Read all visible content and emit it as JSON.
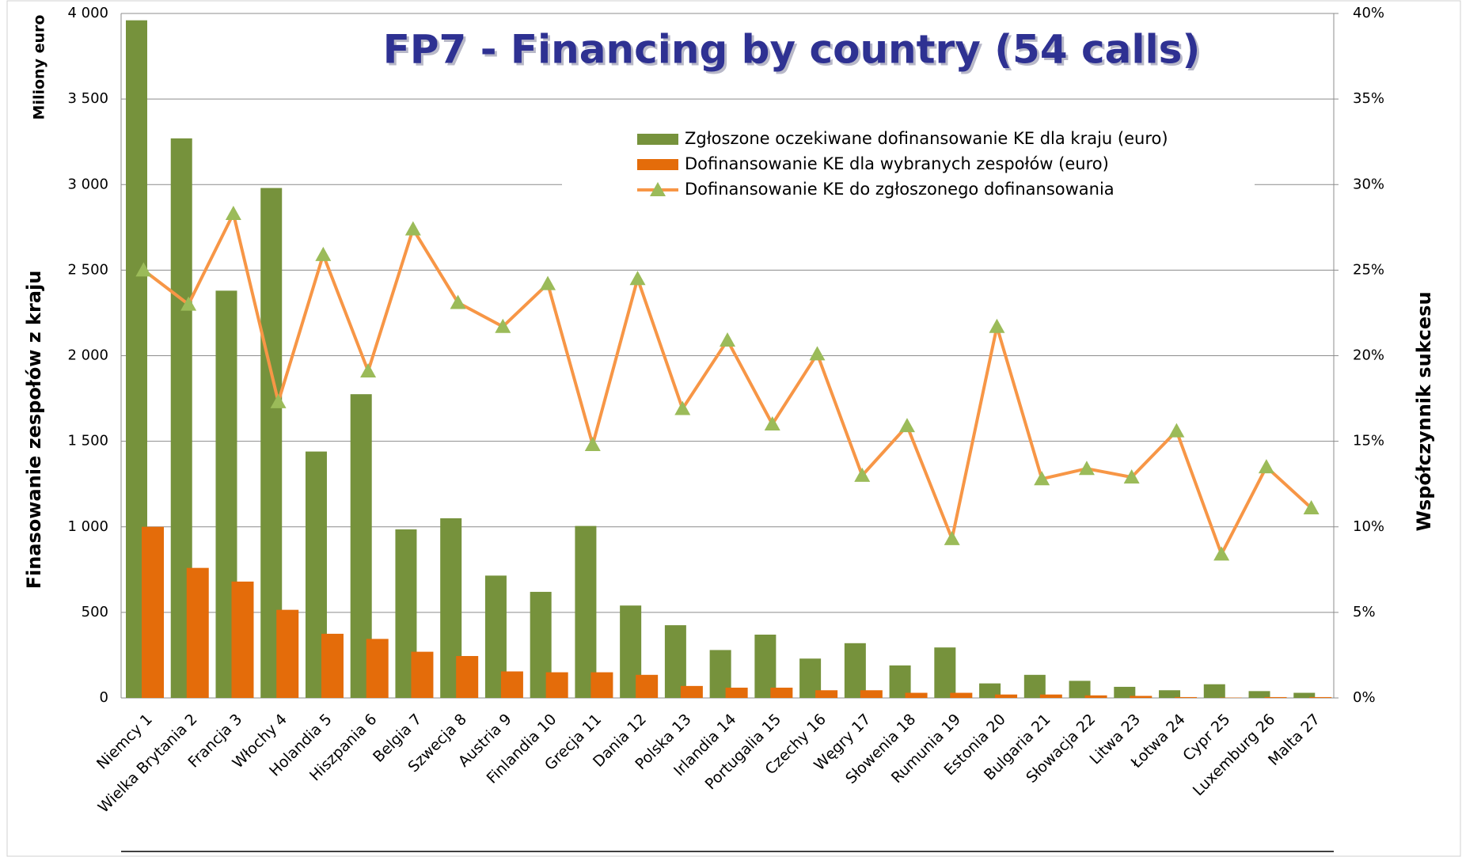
{
  "chart_data": {
    "type": "bar",
    "title": "FP7 - Financing by country (54 calls)",
    "y_unit_label": "Miliony euro",
    "y_axis_label": "Finasowanie zespołów z kraju",
    "y2_axis_label": "Współczynnik sukcesu",
    "categories": [
      "Niemcy 1",
      "Wielka Brytania 2",
      "Francja 3",
      "Włochy 4",
      "Holandia 5",
      "Hiszpania 6",
      "Belgia 7",
      "Szwecja 8",
      "Austria 9",
      "Finlandia 10",
      "Grecja 11",
      "Dania 12",
      "Polska 13",
      "Irlandia 14",
      "Portugalia 15",
      "Czechy 16",
      "Węgry 17",
      "Słowenia 18",
      "Rumunia 19",
      "Estonia 20",
      "Bulgaria 21",
      "Słowacja 22",
      "Litwa 23",
      "Łotwa 24",
      "Cypr 25",
      "Luxemburg 26",
      "Malta 27"
    ],
    "series": [
      {
        "name": "Zgłoszone oczekiwane dofinansowanie  KE dla kraju (euro)",
        "type": "bar",
        "color": "#76923c",
        "values": [
          3960,
          3270,
          2380,
          2980,
          1440,
          1775,
          985,
          1050,
          715,
          620,
          1005,
          540,
          425,
          280,
          370,
          230,
          320,
          190,
          295,
          85,
          135,
          100,
          65,
          45,
          80,
          40,
          30
        ]
      },
      {
        "name": "Dofinansowanie KE dla wybranych zespołów (euro)",
        "type": "bar",
        "color": "#e46c0a",
        "values": [
          1000,
          760,
          680,
          515,
          375,
          345,
          270,
          245,
          155,
          150,
          150,
          135,
          70,
          60,
          60,
          45,
          45,
          30,
          30,
          20,
          20,
          15,
          12,
          5,
          2,
          5,
          5
        ]
      },
      {
        "name": "Dofinansowanie KE do zgłoszonego dofinansowania",
        "type": "line",
        "axis": "y2",
        "color": "#f79646",
        "marker_color": "#9bbb59",
        "values": [
          25.0,
          23.0,
          28.3,
          17.3,
          25.9,
          19.1,
          27.4,
          23.1,
          21.7,
          24.2,
          14.8,
          24.5,
          16.9,
          20.9,
          16.0,
          20.1,
          13.0,
          15.9,
          9.3,
          21.7,
          12.8,
          13.4,
          12.9,
          15.6,
          8.4,
          13.5,
          11.1
        ]
      }
    ],
    "ylim": [
      0,
      4000
    ],
    "yticks": [
      0,
      500,
      {
        "value": 1000,
        "label": "1 000"
      },
      {
        "value": 1500,
        "label": "1 500"
      },
      {
        "value": 2000,
        "label": "2 000"
      },
      {
        "value": 2500,
        "label": "2 500"
      },
      {
        "value": 3000,
        "label": "3 000"
      },
      {
        "value": 3500,
        "label": "3 500"
      },
      {
        "value": 4000,
        "label": "4 000"
      }
    ],
    "y2lim": [
      0,
      40
    ],
    "y2ticks": [
      {
        "value": 0,
        "label": "0%"
      },
      {
        "value": 5,
        "label": "5%"
      },
      {
        "value": 10,
        "label": "10%"
      },
      {
        "value": 15,
        "label": "15%"
      },
      {
        "value": 20,
        "label": "20%"
      },
      {
        "value": 25,
        "label": "25%"
      },
      {
        "value": 30,
        "label": "30%"
      },
      {
        "value": 35,
        "label": "35%"
      },
      {
        "value": 40,
        "label": "40%"
      }
    ],
    "grid": true
  }
}
